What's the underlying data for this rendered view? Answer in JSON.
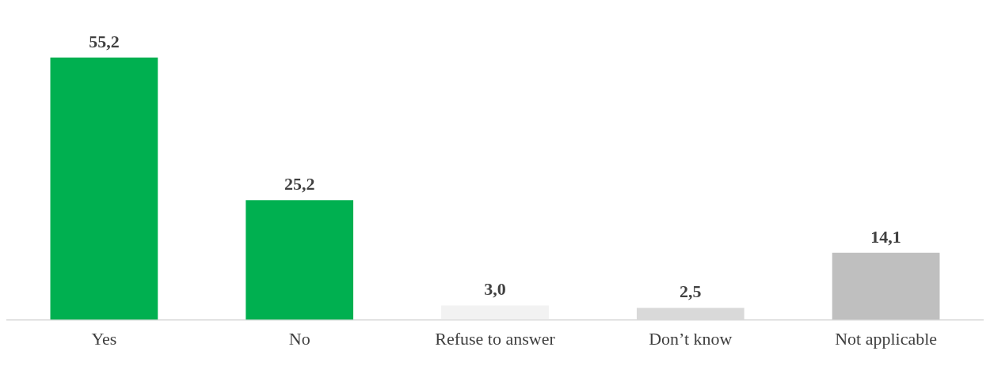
{
  "chart_data": {
    "type": "bar",
    "categories": [
      "Yes",
      "No",
      "Refuse to answer",
      "Don’t know",
      "Not applicable"
    ],
    "values": [
      55.2,
      25.2,
      3.0,
      2.5,
      14.1
    ],
    "colors": [
      "#00b050",
      "#00b050",
      "#f2f2f2",
      "#d9d9d9",
      "#bfbfbf"
    ],
    "value_labels": [
      "55,2",
      "25,2",
      "3,0",
      "2,5",
      "14,1"
    ],
    "grid": false,
    "legend": false
  }
}
